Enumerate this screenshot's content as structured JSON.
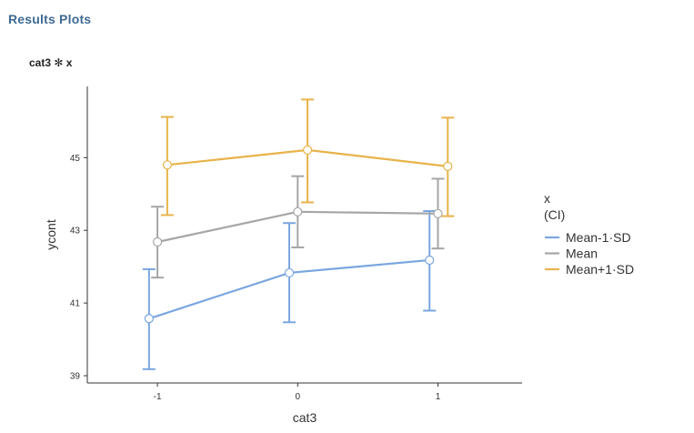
{
  "header": {
    "section_title": "Results Plots",
    "plot_title": "cat3 ✻ x"
  },
  "chart_data": {
    "type": "line",
    "title": "",
    "xlabel": "cat3",
    "ylabel": "ycont",
    "categories": [
      "-1",
      "0",
      "1"
    ],
    "x_tick_labels": [
      "-1",
      "0",
      "1"
    ],
    "y_ticks": [
      39,
      41,
      43,
      45
    ],
    "y_tick_labels": [
      "39",
      "41",
      "43",
      "45"
    ],
    "ylim": [
      38.8,
      46.96
    ],
    "xlim": [
      -1.5,
      1.6
    ],
    "grid": false,
    "error_bars": "CI",
    "legend": {
      "position": "right",
      "title_line1": "x",
      "title_line2": "(CI)",
      "entries": [
        "Mean-1·SD",
        "Mean",
        "Mean+1·SD"
      ]
    },
    "series": [
      {
        "name": "Mean-1·SD",
        "color": "#7aa6e0",
        "x": [
          -1.06,
          -0.06,
          0.94
        ],
        "values": [
          40.57,
          41.83,
          42.18
        ],
        "ci_low": [
          39.18,
          40.47,
          40.79
        ],
        "ci_high": [
          41.93,
          43.2,
          43.53
        ]
      },
      {
        "name": "Mean",
        "color": "#a6a6a6",
        "x": [
          -1.0,
          0.0,
          1.0
        ],
        "values": [
          42.68,
          43.51,
          43.46
        ],
        "ci_low": [
          41.7,
          42.53,
          42.5
        ],
        "ci_high": [
          43.65,
          44.49,
          44.42
        ]
      },
      {
        "name": "Mean+1·SD",
        "color": "#e8b34a",
        "x": [
          -0.93,
          0.07,
          1.07
        ],
        "values": [
          44.8,
          45.21,
          44.76
        ],
        "ci_low": [
          43.42,
          43.77,
          43.39
        ],
        "ci_high": [
          46.12,
          46.6,
          46.1
        ]
      }
    ]
  }
}
